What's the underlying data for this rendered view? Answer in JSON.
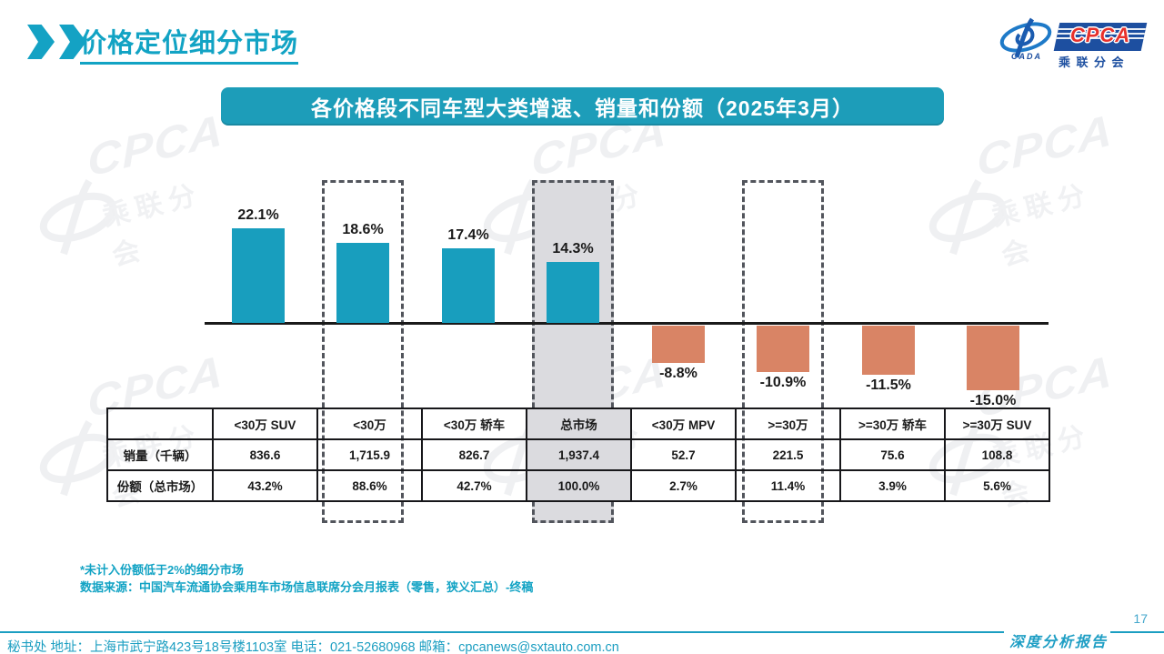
{
  "page": {
    "title": "价格定位细分市场",
    "banner": "各价格段不同车型大类增速、销量和份额（2025年3月）",
    "page_number": "17",
    "report_label": "深度分析报告"
  },
  "logo": {
    "cpca": "CPCA",
    "cada": "CADA",
    "subtitle": "乘联分会"
  },
  "watermark": {
    "line1": "CPCA",
    "line2": "乘联分会"
  },
  "chart_data": {
    "type": "bar",
    "title": "各价格段不同车型大类增速、销量和份额（2025年3月）",
    "categories": [
      "<30万 SUV",
      "<30万",
      "<30万 轿车",
      "总市场",
      "<30万 MPV",
      ">=30万",
      ">=30万 轿车",
      ">=30万 SUV"
    ],
    "series": [
      {
        "name": "增速",
        "values": [
          22.1,
          18.6,
          17.4,
          14.3,
          -8.8,
          -10.9,
          -11.5,
          -15.0
        ],
        "labels": [
          "22.1%",
          "18.6%",
          "17.4%",
          "14.3%",
          "-8.8%",
          "-10.9%",
          "-11.5%",
          "-15.0%"
        ]
      }
    ],
    "highlight": {
      "dashed_column_indices": [
        1,
        3,
        5
      ],
      "filled_column_index": 3
    },
    "table": {
      "row_headers": [
        "销量（千辆）",
        "份额（总市场）"
      ],
      "rows": [
        [
          "836.6",
          "1,715.9",
          "826.7",
          "1,937.4",
          "52.7",
          "221.5",
          "75.6",
          "108.8"
        ],
        [
          "43.2%",
          "88.6%",
          "42.7%",
          "100.0%",
          "2.7%",
          "11.4%",
          "3.9%",
          "5.6%"
        ]
      ]
    },
    "ylim": [
      -15,
      25
    ],
    "grid": false,
    "legend": false
  },
  "footnotes": [
    "*未计入份额低于2%的细分市场",
    "数据来源：中国汽车流通协会乘用车市场信息联席分会月报表（零售，狭义汇总）-终稿"
  ],
  "footer": {
    "text": "秘书处  地址：上海市武宁路423号18号楼1103室 电话：021-52680968  邮箱：cpcanews@sxtauto.com.cn"
  },
  "colors": {
    "accent_teal": "#189EBE",
    "banner_bg": "#1D9DB9",
    "negative_orange": "#D98465",
    "highlight_gray": "#DBDBDF",
    "dash_border": "#52555C",
    "logo_navy": "#1D4FA0",
    "logo_red": "#E8312B",
    "footer_teal": "#1B9EC1"
  }
}
